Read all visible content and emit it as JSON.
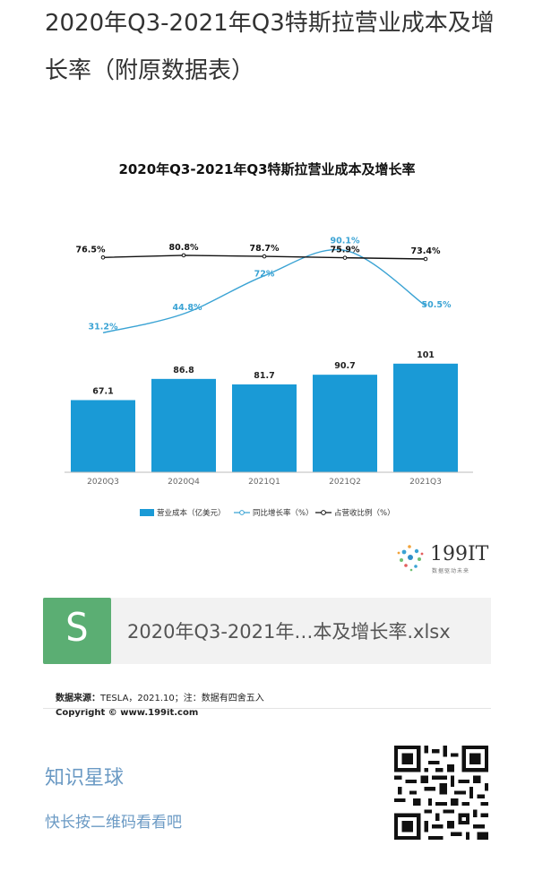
{
  "page": {
    "title": "2020年Q3-2021年Q3特斯拉营业成本及增长率（附原数据表）"
  },
  "chart_data": {
    "type": "bar",
    "title": "2020年Q3-2021年Q3特斯拉营业成本及增长率",
    "categories": [
      "2020Q3",
      "2020Q4",
      "2021Q1",
      "2021Q2",
      "2021Q3"
    ],
    "series": [
      {
        "name": "营业成本（亿美元）",
        "type": "bar",
        "color": "#1a9ad6",
        "values": [
          67.1,
          86.8,
          81.7,
          90.7,
          101
        ],
        "labels": [
          "67.1",
          "86.8",
          "81.7",
          "90.7",
          "101"
        ]
      },
      {
        "name": "同比增长率（%）",
        "type": "line",
        "color": "#3aa3d4",
        "values": [
          31.2,
          44.8,
          72,
          90.1,
          50.5
        ],
        "labels": [
          "31.2%",
          "44.8%",
          "72%",
          "90.1%",
          "50.5%"
        ]
      },
      {
        "name": "占营收比例（%）",
        "type": "line",
        "color": "#111111",
        "values": [
          76.5,
          80.8,
          78.7,
          75.9,
          73.4
        ],
        "labels": [
          "76.5%",
          "80.8%",
          "78.7%",
          "75.9%",
          "73.4%"
        ]
      }
    ],
    "legend_position": "bottom"
  },
  "source": {
    "label": "数据来源：",
    "text": "TESLA，2021.10；注：数据有四舍五入",
    "copyright": "Copyright © www.199it.com"
  },
  "brand": {
    "name": "199IT",
    "sub": "数据驱动未来"
  },
  "file": {
    "icon_letter": "S",
    "name": "2020年Q3-2021年…本及增长率.xlsx"
  },
  "planet": {
    "title": "知识星球",
    "subtitle": "快长按二维码看看吧"
  },
  "colors": {
    "bar": "#1a9ad6",
    "growth_line": "#3aa3d4",
    "share_line": "#111111",
    "file_icon": "#5bae73",
    "planet_text": "#6b9ac4"
  }
}
